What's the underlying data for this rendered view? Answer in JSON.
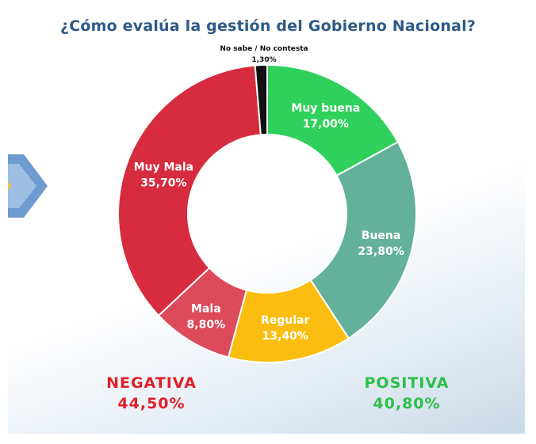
{
  "chart_data": {
    "type": "pie",
    "title": "¿Cómo evalúa la gestión del Gobierno Nacional?",
    "style": "donut",
    "slices": [
      {
        "label": "Muy buena",
        "value": 17.0,
        "display": "17,00%",
        "color": "#2fd15c"
      },
      {
        "label": "Buena",
        "value": 23.8,
        "display": "23,80%",
        "color": "#64b19b"
      },
      {
        "label": "Regular",
        "value": 13.4,
        "display": "13,40%",
        "color": "#fbbd0f"
      },
      {
        "label": "Mala",
        "value": 8.8,
        "display": "8,80%",
        "color": "#dc4a5c"
      },
      {
        "label": "Muy Mala",
        "value": 35.7,
        "display": "35,70%",
        "color": "#d62c3d"
      },
      {
        "label": "No sabe / No contesta",
        "value": 1.3,
        "display": "1,30%",
        "color": "#111111"
      }
    ],
    "groups": [
      {
        "label": "NEGATIVA",
        "display": "44,50%",
        "color": "#e0202a"
      },
      {
        "label": "POSITIVA",
        "display": "40,80%",
        "color": "#2bbf48"
      }
    ]
  }
}
